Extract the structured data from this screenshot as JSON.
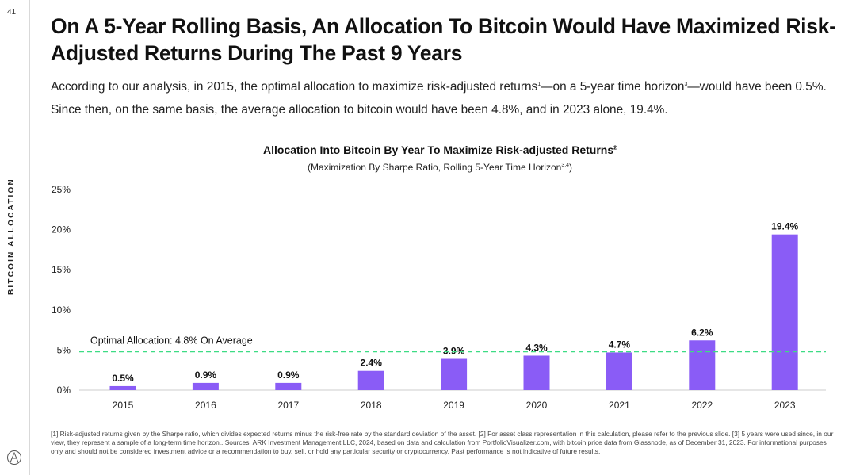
{
  "page": {
    "number": "41",
    "section_label": "BITCOIN ALLOCATION"
  },
  "header": {
    "title": "On A 5-Year Rolling Basis, An Allocation To Bitcoin Would Have Maximized Risk-Adjusted Returns During The Past 9 Years",
    "subtitle_part1": "According to our analysis, in 2015, the optimal allocation to maximize risk-adjusted returns",
    "subtitle_sup1": "1",
    "subtitle_part2": "—on a 5-year time horizon",
    "subtitle_sup2": "3",
    "subtitle_part3": "—would have been 0.5%. Since then, on the same basis, the average allocation to bitcoin would have been 4.8%, and in 2023 alone, 19.4%."
  },
  "chart_data": {
    "type": "bar",
    "title": "Allocation Into Bitcoin By Year To Maximize Risk-adjusted Returns",
    "title_sup": "2",
    "subtitle": "(Maximization By Sharpe Ratio, Rolling 5-Year Time Horizon",
    "subtitle_sup": "3,4",
    "subtitle_end": ")",
    "categories": [
      "2015",
      "2016",
      "2017",
      "2018",
      "2019",
      "2020",
      "2021",
      "2022",
      "2023"
    ],
    "values": [
      0.5,
      0.9,
      0.9,
      2.4,
      3.9,
      4.3,
      4.7,
      6.2,
      19.4
    ],
    "data_labels": [
      "0.5%",
      "0.9%",
      "0.9%",
      "2.4%",
      "3.9%",
      "4.3%",
      "4.7%",
      "6.2%",
      "19.4%"
    ],
    "ylim": [
      0,
      25
    ],
    "yticks": [
      0,
      5,
      10,
      15,
      20,
      25
    ],
    "ytick_labels": [
      "0%",
      "5%",
      "10%",
      "15%",
      "20%",
      "25%"
    ],
    "xlabel": "",
    "ylabel": "",
    "reference_line": {
      "value": 4.8,
      "label": "Optimal Allocation: 4.8% On Average",
      "color": "#3ddc84"
    },
    "bar_color": "#8a5cf6"
  },
  "footnote": "[1] Risk-adjusted returns given by the Sharpe ratio, which divides expected returns minus the risk-free rate by the standard deviation of the asset. [2] For asset class representation in this calculation, please refer to the previous slide. [3] 5 years were used since, in our view, they represent a sample of a long-term time horizon.. Sources: ARK Investment Management LLC, 2024, based on data and calculation from PortfolioVisualizer.com, with bitcoin price data from Glassnode, as of December 31, 2023. For informational purposes only and should not be considered investment advice or a recommendation to buy, sell, or hold any particular security or cryptocurrency. Past performance is not indicative of future results.",
  "colors": {
    "bar": "#8a5cf6",
    "reference": "#3ddc84",
    "axis": "#cccccc"
  }
}
